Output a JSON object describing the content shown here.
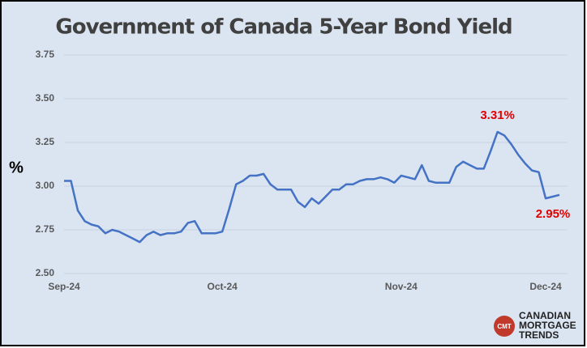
{
  "chart_data": {
    "type": "line",
    "title": "Government of Canada  5-Year Bond Yield",
    "y_label": "%",
    "color": "#4472c4",
    "label_color": "#e00000",
    "grid": true,
    "ylim": [
      2.5,
      3.75
    ],
    "yticks": [
      {
        "value": 2.5,
        "label": "2.50"
      },
      {
        "value": 2.75,
        "label": "2.75"
      },
      {
        "value": 3.0,
        "label": "3.00"
      },
      {
        "value": 3.25,
        "label": "3.25"
      },
      {
        "value": 3.5,
        "label": "3.50"
      },
      {
        "value": 3.75,
        "label": "3.75"
      }
    ],
    "categories": [
      "Sep-24",
      null,
      null,
      null,
      null,
      null,
      null,
      null,
      null,
      null,
      null,
      null,
      null,
      null,
      null,
      null,
      null,
      null,
      null,
      null,
      null,
      null,
      null,
      "Oct-24",
      null,
      null,
      null,
      null,
      null,
      null,
      null,
      null,
      null,
      null,
      null,
      null,
      null,
      null,
      null,
      null,
      null,
      null,
      null,
      null,
      null,
      null,
      null,
      null,
      null,
      "Nov-24",
      null,
      null,
      null,
      null,
      null,
      null,
      null,
      null,
      null,
      null,
      null,
      null,
      null,
      null,
      null,
      null,
      null,
      null,
      null,
      null,
      "Dec-24",
      null,
      null
    ],
    "values": [
      3.03,
      3.03,
      2.86,
      2.8,
      2.78,
      2.77,
      2.73,
      2.75,
      2.74,
      2.72,
      2.7,
      2.68,
      2.72,
      2.74,
      2.72,
      2.73,
      2.73,
      2.74,
      2.79,
      2.8,
      2.73,
      2.73,
      2.73,
      2.74,
      2.87,
      3.01,
      3.03,
      3.06,
      3.06,
      3.07,
      3.01,
      2.98,
      2.98,
      2.98,
      2.91,
      2.88,
      2.93,
      2.9,
      2.94,
      2.98,
      2.98,
      3.01,
      3.01,
      3.03,
      3.04,
      3.04,
      3.05,
      3.04,
      3.02,
      3.06,
      3.05,
      3.04,
      3.12,
      3.03,
      3.02,
      3.02,
      3.02,
      3.11,
      3.14,
      3.12,
      3.1,
      3.1,
      3.2,
      3.31,
      3.29,
      3.24,
      3.18,
      3.13,
      3.09,
      3.08,
      2.93,
      2.94,
      2.95
    ],
    "value_labels": [
      null,
      null,
      null,
      null,
      null,
      null,
      null,
      null,
      null,
      null,
      null,
      null,
      null,
      null,
      null,
      null,
      null,
      null,
      null,
      null,
      null,
      null,
      null,
      null,
      null,
      null,
      null,
      null,
      null,
      null,
      null,
      null,
      null,
      null,
      null,
      null,
      null,
      null,
      null,
      null,
      null,
      null,
      null,
      null,
      null,
      null,
      null,
      null,
      null,
      null,
      null,
      null,
      null,
      null,
      null,
      null,
      null,
      null,
      null,
      null,
      null,
      null,
      null,
      "3.31%",
      null,
      null,
      null,
      null,
      null,
      null,
      null,
      null,
      "2.95%"
    ]
  },
  "logo": {
    "badge": "CMT",
    "lines": [
      "CANADIAN",
      "MORTGAGE",
      "TRENDS"
    ]
  }
}
